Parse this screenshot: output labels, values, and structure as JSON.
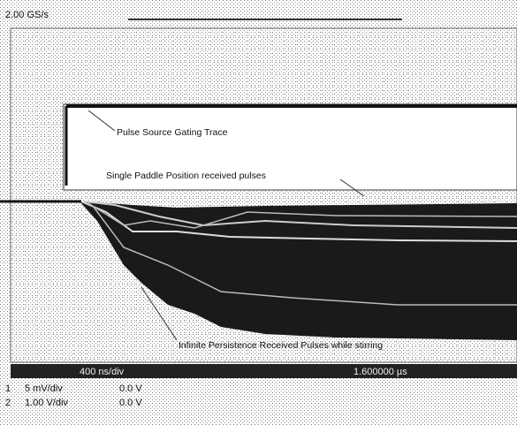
{
  "status": {
    "sample_rate": "2.00 GS/s"
  },
  "annotations": [
    "Pulse Source Gating Trace",
    "Single Paddle Position received pulses",
    "Infinite Persistence Received Pulses while stirring"
  ],
  "footer": {
    "timebase": "400 ns/div",
    "delay": "1.600000 µs"
  },
  "channels": [
    {
      "number": "1",
      "scale": "5 mV/div",
      "offset": "0.0 V"
    },
    {
      "number": "2",
      "scale": "1.00 V/div",
      "offset": "0.0 V"
    }
  ]
}
